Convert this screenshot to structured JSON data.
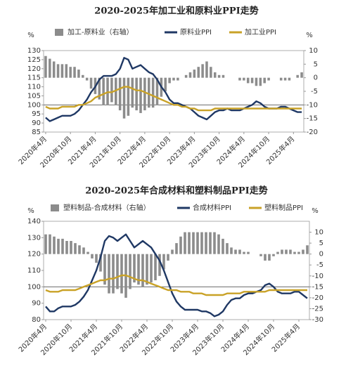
{
  "chart_data": [
    {
      "type": "bar-line",
      "title": "2020-2025年加工业和原料业PPI走势",
      "y_unit": "%",
      "y2_unit": "%",
      "categories": [
        "2020年4月",
        null,
        null,
        null,
        null,
        null,
        "2020年10月",
        null,
        null,
        null,
        null,
        null,
        "2021年4月",
        null,
        null,
        null,
        null,
        null,
        "2021年10月",
        null,
        null,
        null,
        null,
        null,
        "2022年4月",
        null,
        null,
        null,
        null,
        null,
        "2022年10月",
        null,
        null,
        null,
        null,
        null,
        "2023年4月",
        null,
        null,
        null,
        null,
        null,
        "2023年10月",
        null,
        null,
        null,
        null,
        null,
        "2024年4月",
        null,
        null,
        null,
        null,
        null,
        "2024年10月",
        null,
        null,
        null,
        null,
        null,
        "2025年4月",
        null,
        null
      ],
      "ylim": [
        85,
        130
      ],
      "yticks": [
        85,
        90,
        95,
        100,
        105,
        110,
        115,
        120,
        125,
        130
      ],
      "y2lim": [
        -20,
        10
      ],
      "y2ticks": [
        -20,
        -15,
        -10,
        -5,
        0,
        5,
        10
      ],
      "hline": 100,
      "series": [
        {
          "name": "加工-原料业（右轴）",
          "color": "#8c8c8c",
          "axis": "y2",
          "kind": "bar",
          "values": [
            8,
            7,
            6,
            5,
            5,
            5,
            4,
            4,
            3,
            1,
            -1,
            -4,
            -6,
            -8,
            -10,
            -10,
            -9,
            -10,
            -12,
            -15,
            -14,
            -11,
            -12,
            -13,
            -12,
            -11,
            -11,
            -10,
            -7,
            -5,
            -2,
            -1,
            -1,
            0,
            1,
            2,
            3,
            4,
            5,
            6,
            4,
            2,
            1,
            1,
            0,
            0,
            0,
            -1,
            -1,
            -2,
            -2,
            -3,
            -3,
            -2,
            -1,
            0,
            0,
            -1,
            -1,
            -1,
            0,
            1,
            2
          ]
        },
        {
          "name": "原料业PPI",
          "color": "#1f3864",
          "kind": "line",
          "values": [
            93,
            91,
            92,
            93,
            94,
            94,
            94,
            95,
            97,
            100,
            103,
            107,
            110,
            114,
            116,
            116,
            116,
            117,
            120,
            126,
            125,
            120,
            121,
            122,
            120,
            118,
            117,
            114,
            110,
            107,
            103,
            101,
            101,
            100,
            99,
            98,
            96,
            94,
            93,
            92,
            94,
            96,
            97,
            97,
            98,
            97,
            97,
            97,
            98,
            99,
            100,
            102,
            101,
            99,
            98,
            98,
            98,
            99,
            99,
            98,
            97,
            96,
            96
          ]
        },
        {
          "name": "加工业PPI",
          "color": "#c9a227",
          "kind": "line",
          "values": [
            99,
            98,
            98,
            98,
            99,
            99,
            99,
            99,
            100,
            100,
            101,
            102,
            104,
            105,
            106,
            107,
            107,
            108,
            109,
            110,
            110,
            109,
            108,
            108,
            107,
            106,
            105,
            104,
            103,
            102,
            101,
            100,
            100,
            99,
            99,
            98,
            98,
            97,
            97,
            97,
            97,
            98,
            98,
            98,
            98,
            98,
            98,
            98,
            98,
            98,
            98,
            98,
            98,
            98,
            98,
            98,
            98,
            98,
            98,
            98,
            98,
            98,
            98
          ]
        }
      ]
    },
    {
      "type": "bar-line",
      "title": "2020-2025年合成材料和塑料制品PPI走势",
      "y_unit": "%",
      "y2_unit": "%",
      "categories": [
        "2020年4月",
        null,
        null,
        null,
        null,
        null,
        "2020年10月",
        null,
        null,
        null,
        null,
        null,
        "2021年4月",
        null,
        null,
        null,
        null,
        null,
        "2021年10月",
        null,
        null,
        null,
        null,
        null,
        "2022年4月",
        null,
        null,
        null,
        null,
        null,
        "2022年10月",
        null,
        null,
        null,
        null,
        null,
        "2023年4月",
        null,
        null,
        null,
        null,
        null,
        "2023年10月",
        null,
        null,
        null,
        null,
        null,
        "2024年4月",
        null,
        null,
        null,
        null,
        null,
        "2024年10月",
        null,
        null,
        null,
        null,
        null,
        "2025年4月",
        null,
        null
      ],
      "ylim": [
        80,
        140
      ],
      "yticks": [
        80,
        90,
        100,
        110,
        120,
        130,
        140
      ],
      "y2lim": [
        -30,
        15
      ],
      "y2ticks": [
        -30,
        -25,
        -20,
        -15,
        -10,
        -5,
        0,
        5,
        10
      ],
      "hline": 100,
      "series": [
        {
          "name": "塑料制品-合成材料（右轴）",
          "color": "#8c8c8c",
          "axis": "y2",
          "kind": "bar",
          "values": [
            9,
            9,
            8,
            7,
            7,
            6,
            6,
            5,
            4,
            3,
            1,
            -2,
            -4,
            -8,
            -14,
            -18,
            -18,
            -16,
            -18,
            -20,
            -16,
            -13,
            -14,
            -15,
            -14,
            -13,
            -12,
            -10,
            -7,
            -3,
            2,
            5,
            8,
            10,
            10,
            10,
            10,
            10,
            10,
            10,
            10,
            9,
            7,
            5,
            3,
            2,
            2,
            1,
            1,
            0,
            0,
            -1,
            -3,
            -3,
            -1,
            1,
            2,
            2,
            2,
            1,
            1,
            2,
            4
          ]
        },
        {
          "name": "合成材料PPI",
          "color": "#1f3864",
          "kind": "line",
          "values": [
            88,
            85,
            85,
            87,
            88,
            88,
            88,
            89,
            91,
            94,
            98,
            104,
            110,
            118,
            128,
            131,
            130,
            128,
            130,
            132,
            128,
            124,
            126,
            128,
            126,
            124,
            120,
            116,
            110,
            103,
            96,
            91,
            88,
            86,
            86,
            86,
            86,
            85,
            85,
            84,
            82,
            83,
            85,
            89,
            92,
            93,
            93,
            95,
            96,
            96,
            97,
            98,
            101,
            102,
            100,
            97,
            96,
            96,
            96,
            97,
            97,
            95,
            93
          ]
        },
        {
          "name": "塑料制品PPI",
          "color": "#c9a227",
          "kind": "line",
          "values": [
            98,
            97,
            97,
            97,
            98,
            98,
            98,
            98,
            99,
            100,
            101,
            102,
            103,
            104,
            104,
            105,
            105,
            106,
            107,
            107,
            106,
            105,
            104,
            104,
            103,
            102,
            101,
            100,
            99,
            98,
            98,
            98,
            97,
            97,
            97,
            96,
            96,
            96,
            95,
            95,
            95,
            95,
            95,
            96,
            96,
            96,
            96,
            97,
            97,
            97,
            97,
            97,
            97,
            98,
            98,
            98,
            98,
            98,
            98,
            98,
            98,
            98,
            98
          ]
        }
      ]
    }
  ]
}
